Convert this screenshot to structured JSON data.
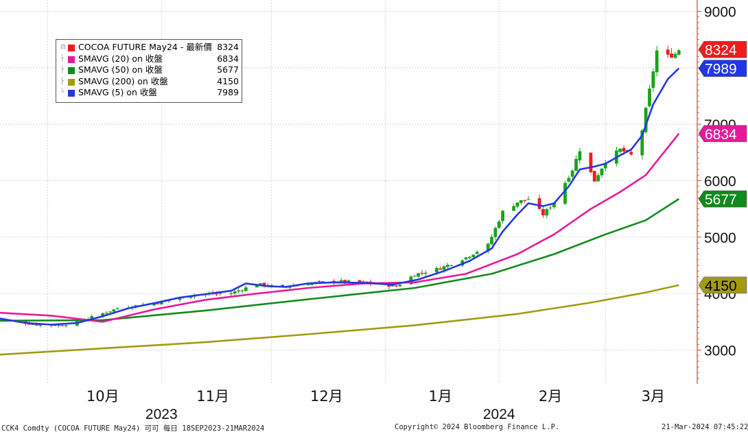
{
  "legend": {
    "items": [
      {
        "label": "COCOA FUTURE May24 - 最新價",
        "value": "8324",
        "color": "#ee1c1c"
      },
      {
        "label": "SMAVG (20)  on 收盤",
        "value": "6834",
        "color": "#e8199a"
      },
      {
        "label": "SMAVG (50)  on 收盤",
        "value": "5677",
        "color": "#118a1b"
      },
      {
        "label": "SMAVG (200)  on 收盤",
        "value": "4150",
        "color": "#a29a12"
      },
      {
        "label": "SMAVG (5)  on 收盤",
        "value": "7989",
        "color": "#2236e8"
      }
    ]
  },
  "footer": {
    "left": "CCK4 Comdty (COCOA FUTURE     May24) 可可  每日 18SEP2023-21MAR2024",
    "center": "Copyright© 2024 Bloomberg Finance L.P.",
    "right": "21-Mar-2024 07:45:22"
  },
  "chart_data": {
    "type": "candlestick",
    "grid": true,
    "y_axis_position": "right",
    "ylim": [
      2400,
      9200
    ],
    "y_ticks": [
      3000,
      4000,
      5000,
      6000,
      7000,
      8000,
      9000
    ],
    "y_tick_labels": [
      "3000",
      "4000",
      "5000",
      "6000",
      "7000",
      "8000",
      "9000"
    ],
    "x_domain": [
      "2023-09-18",
      "2024-03-26"
    ],
    "x_gridlines": [
      "2023-10-01",
      "2023-11-01",
      "2023-12-01",
      "2024-01-01",
      "2024-02-01",
      "2024-03-01"
    ],
    "x_month_labels": [
      {
        "date": "2023-10-16",
        "label": "10月"
      },
      {
        "date": "2023-11-15",
        "label": "11月"
      },
      {
        "date": "2023-12-16",
        "label": "12月"
      },
      {
        "date": "2024-01-16",
        "label": "1月"
      },
      {
        "date": "2024-02-15",
        "label": "2月"
      },
      {
        "date": "2024-03-14",
        "label": "3月"
      }
    ],
    "x_year_labels": [
      {
        "date": "2023-11-01",
        "label": "2023"
      },
      {
        "date": "2024-02-01",
        "label": "2024"
      }
    ],
    "close_anchors": [
      [
        "2023-09-18",
        3550
      ],
      [
        "2023-09-28",
        3450
      ],
      [
        "2023-10-05",
        3440
      ],
      [
        "2023-10-12",
        3560
      ],
      [
        "2023-10-20",
        3740
      ],
      [
        "2023-10-31",
        3840
      ],
      [
        "2023-11-10",
        3980
      ],
      [
        "2023-11-20",
        4010
      ],
      [
        "2023-11-27",
        4170
      ],
      [
        "2023-12-04",
        4110
      ],
      [
        "2023-12-12",
        4190
      ],
      [
        "2023-12-19",
        4220
      ],
      [
        "2023-12-26",
        4200
      ],
      [
        "2024-01-04",
        4130
      ],
      [
        "2024-01-09",
        4340
      ],
      [
        "2024-01-16",
        4450
      ],
      [
        "2024-01-23",
        4640
      ],
      [
        "2024-01-29",
        4860
      ],
      [
        "2024-02-02",
        5450
      ],
      [
        "2024-02-06",
        5620
      ],
      [
        "2024-02-09",
        5680
      ],
      [
        "2024-02-13",
        5400
      ],
      [
        "2024-02-16",
        5620
      ],
      [
        "2024-02-21",
        6200
      ],
      [
        "2024-02-23",
        6550
      ],
      [
        "2024-02-27",
        6000
      ],
      [
        "2024-03-01",
        6350
      ],
      [
        "2024-03-05",
        6550
      ],
      [
        "2024-03-08",
        6450
      ],
      [
        "2024-03-11",
        6900
      ],
      [
        "2024-03-13",
        7600
      ],
      [
        "2024-03-15",
        8300
      ],
      [
        "2024-03-18",
        8200
      ],
      [
        "2024-03-20",
        8250
      ],
      [
        "2024-03-21",
        8324
      ]
    ],
    "series": [
      {
        "name": "SMAVG (5)  on 收盤",
        "color": "#2236e8",
        "points": [
          [
            "2023-09-18",
            3560
          ],
          [
            "2023-09-25",
            3480
          ],
          [
            "2023-10-02",
            3450
          ],
          [
            "2023-10-09",
            3480
          ],
          [
            "2023-10-16",
            3600
          ],
          [
            "2023-10-23",
            3740
          ],
          [
            "2023-10-30",
            3830
          ],
          [
            "2023-11-06",
            3930
          ],
          [
            "2023-11-13",
            3990
          ],
          [
            "2023-11-20",
            4050
          ],
          [
            "2023-11-24",
            4180
          ],
          [
            "2023-11-30",
            4130
          ],
          [
            "2023-12-05",
            4120
          ],
          [
            "2023-12-11",
            4180
          ],
          [
            "2023-12-18",
            4200
          ],
          [
            "2023-12-26",
            4190
          ],
          [
            "2024-01-03",
            4160
          ],
          [
            "2024-01-10",
            4250
          ],
          [
            "2024-01-17",
            4400
          ],
          [
            "2024-01-24",
            4580
          ],
          [
            "2024-01-30",
            4800
          ],
          [
            "2024-02-02",
            5100
          ],
          [
            "2024-02-06",
            5400
          ],
          [
            "2024-02-09",
            5600
          ],
          [
            "2024-02-13",
            5550
          ],
          [
            "2024-02-16",
            5600
          ],
          [
            "2024-02-20",
            5900
          ],
          [
            "2024-02-23",
            6200
          ],
          [
            "2024-02-27",
            6250
          ],
          [
            "2024-03-01",
            6300
          ],
          [
            "2024-03-05",
            6450
          ],
          [
            "2024-03-08",
            6550
          ],
          [
            "2024-03-11",
            6800
          ],
          [
            "2024-03-14",
            7350
          ],
          [
            "2024-03-18",
            7800
          ],
          [
            "2024-03-21",
            7989
          ]
        ]
      },
      {
        "name": "SMAVG (20)  on 收盤",
        "color": "#e8199a",
        "points": [
          [
            "2023-09-18",
            3660
          ],
          [
            "2023-10-02",
            3610
          ],
          [
            "2023-10-16",
            3500
          ],
          [
            "2023-10-30",
            3720
          ],
          [
            "2023-11-13",
            3890
          ],
          [
            "2023-11-27",
            4000
          ],
          [
            "2023-12-11",
            4100
          ],
          [
            "2023-12-26",
            4180
          ],
          [
            "2024-01-09",
            4200
          ],
          [
            "2024-01-23",
            4350
          ],
          [
            "2024-02-06",
            4700
          ],
          [
            "2024-02-16",
            5050
          ],
          [
            "2024-02-26",
            5500
          ],
          [
            "2024-03-05",
            5800
          ],
          [
            "2024-03-12",
            6100
          ],
          [
            "2024-03-21",
            6834
          ]
        ]
      },
      {
        "name": "SMAVG (50)  on 收盤",
        "color": "#118a1b",
        "points": [
          [
            "2023-09-18",
            3520
          ],
          [
            "2023-10-16",
            3530
          ],
          [
            "2023-11-13",
            3700
          ],
          [
            "2023-12-11",
            3900
          ],
          [
            "2024-01-09",
            4100
          ],
          [
            "2024-01-30",
            4350
          ],
          [
            "2024-02-16",
            4700
          ],
          [
            "2024-03-01",
            5050
          ],
          [
            "2024-03-12",
            5300
          ],
          [
            "2024-03-21",
            5677
          ]
        ]
      },
      {
        "name": "SMAVG (200)  on 收盤",
        "color": "#a29a12",
        "points": [
          [
            "2023-09-18",
            2920
          ],
          [
            "2023-10-16",
            3030
          ],
          [
            "2023-11-13",
            3140
          ],
          [
            "2023-12-11",
            3280
          ],
          [
            "2024-01-09",
            3440
          ],
          [
            "2024-02-06",
            3640
          ],
          [
            "2024-02-26",
            3840
          ],
          [
            "2024-03-12",
            4020
          ],
          [
            "2024-03-21",
            4150
          ]
        ]
      }
    ],
    "value_tags": [
      {
        "label": "8324",
        "value": 8324,
        "color": "#ee1c1c",
        "text_color": "#ffffff"
      },
      {
        "label": "7989",
        "value": 7989,
        "color": "#2236e8",
        "text_color": "#ffffff"
      },
      {
        "label": "6834",
        "value": 6834,
        "color": "#e8199a",
        "text_color": "#ffffff"
      },
      {
        "label": "5677",
        "value": 5677,
        "color": "#118a1b",
        "text_color": "#ffffff"
      },
      {
        "label": "4150",
        "value": 4150,
        "color": "#a29a12",
        "text_color": "#000000"
      }
    ]
  }
}
